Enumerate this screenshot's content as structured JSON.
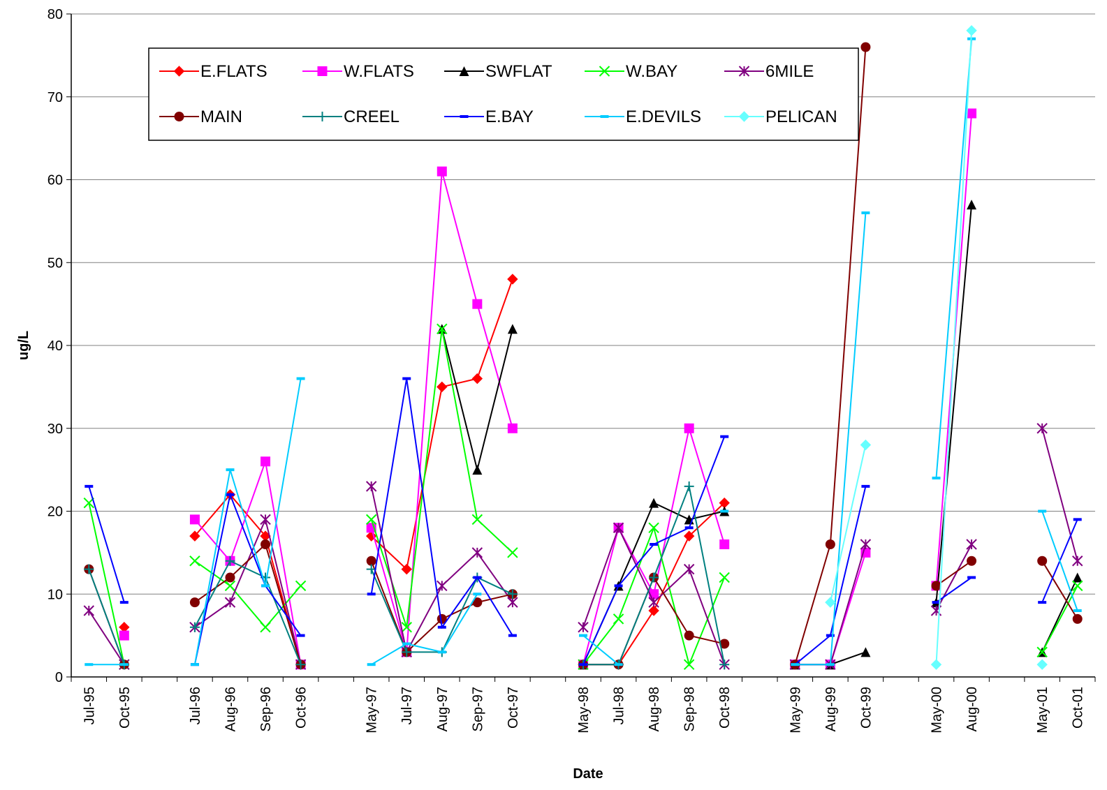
{
  "chart_data": {
    "type": "line",
    "title": "",
    "xlabel": "Date",
    "ylabel": "ug/L",
    "ylim": [
      0,
      80
    ],
    "yticks": [
      0,
      10,
      20,
      30,
      40,
      50,
      60,
      70,
      80
    ],
    "grid": "horizontal",
    "legend_position": "top-left-inside",
    "x": [
      "Jul-95",
      "Oct-95",
      "",
      "Jul-96",
      "Aug-96",
      "Sep-96",
      "Oct-96",
      "",
      "May-97",
      "Jul-97",
      "Aug-97",
      "Sep-97",
      "Oct-97",
      "",
      "May-98",
      "Jul-98",
      "Aug-98",
      "Sep-98",
      "Oct-98",
      "",
      "May-99",
      "Aug-99",
      "Oct-99",
      "",
      "May-00",
      "Aug-00",
      "",
      "May-01",
      "Oct-01"
    ],
    "series": [
      {
        "name": "E.FLATS",
        "color": "#FF0000",
        "marker": "diamond",
        "values": [
          null,
          6,
          null,
          17,
          22,
          17,
          1.5,
          null,
          17,
          13,
          35,
          36,
          48,
          null,
          1.5,
          1.5,
          8,
          17,
          21,
          null,
          null,
          null,
          null,
          null,
          null,
          null,
          null,
          null,
          null
        ]
      },
      {
        "name": "W.FLATS",
        "color": "#FF00FF",
        "marker": "square",
        "values": [
          null,
          5,
          null,
          19,
          14,
          26,
          1.5,
          null,
          18,
          3,
          61,
          45,
          30,
          null,
          1.5,
          18,
          10,
          30,
          16,
          null,
          1.5,
          1.5,
          15,
          null,
          11,
          68,
          null,
          null,
          null
        ]
      },
      {
        "name": "SWFLAT",
        "color": "#000000",
        "marker": "triangle",
        "values": [
          null,
          null,
          null,
          null,
          null,
          null,
          null,
          null,
          null,
          null,
          42,
          25,
          42,
          null,
          1.5,
          11,
          21,
          19,
          20,
          null,
          1.5,
          1.5,
          3,
          null,
          9,
          57,
          null,
          3,
          12
        ]
      },
      {
        "name": "W.BAY",
        "color": "#00FF00",
        "marker": "x",
        "values": [
          21,
          1.5,
          null,
          14,
          11,
          6,
          11,
          null,
          19,
          6,
          42,
          19,
          15,
          null,
          1.5,
          7,
          18,
          1.5,
          12,
          null,
          null,
          null,
          null,
          null,
          null,
          null,
          null,
          3,
          11
        ]
      },
      {
        "name": "6MILE",
        "color": "#800080",
        "marker": "star",
        "values": [
          8,
          1.5,
          null,
          6,
          9,
          19,
          1.5,
          null,
          23,
          3,
          11,
          15,
          9,
          null,
          6,
          18,
          9,
          13,
          1.5,
          null,
          1.5,
          1.5,
          16,
          null,
          8,
          16,
          null,
          30,
          14
        ]
      },
      {
        "name": "MAIN",
        "color": "#800000",
        "marker": "circle",
        "values": [
          13,
          1.5,
          null,
          9,
          12,
          16,
          1.5,
          null,
          14,
          3,
          7,
          9,
          10,
          null,
          1.5,
          1.5,
          12,
          5,
          4,
          null,
          1.5,
          16,
          76,
          null,
          11,
          14,
          null,
          14,
          7
        ]
      },
      {
        "name": "CREEL",
        "color": "#008080",
        "marker": "plus",
        "values": [
          13,
          1.5,
          null,
          6,
          14,
          12,
          1.5,
          null,
          13,
          3,
          3,
          12,
          10,
          null,
          1.5,
          1.5,
          12,
          23,
          1.5,
          null,
          null,
          null,
          null,
          null,
          null,
          null,
          null,
          null,
          null
        ]
      },
      {
        "name": "E.BAY",
        "color": "#0000FF",
        "marker": "dash",
        "values": [
          23,
          9,
          null,
          1.5,
          22,
          11,
          5,
          null,
          10,
          36,
          6,
          12,
          5,
          null,
          1.5,
          11,
          16,
          18,
          29,
          null,
          1.5,
          5,
          23,
          null,
          9,
          12,
          null,
          9,
          19
        ]
      },
      {
        "name": "E.DEVILS",
        "color": "#00CCFF",
        "marker": "dash",
        "values": [
          1.5,
          1.5,
          null,
          1.5,
          25,
          11,
          36,
          null,
          1.5,
          4,
          3,
          10,
          null,
          null,
          5,
          1.5,
          null,
          null,
          20,
          null,
          1.5,
          1.5,
          56,
          null,
          24,
          77,
          null,
          20,
          8
        ]
      },
      {
        "name": "PELICAN",
        "color": "#66FFFF",
        "marker": "diamond",
        "values": [
          null,
          null,
          null,
          null,
          null,
          null,
          null,
          null,
          null,
          null,
          null,
          null,
          null,
          null,
          null,
          null,
          null,
          null,
          null,
          null,
          null,
          9,
          28,
          null,
          1.5,
          78,
          null,
          1.5,
          null
        ]
      }
    ]
  }
}
